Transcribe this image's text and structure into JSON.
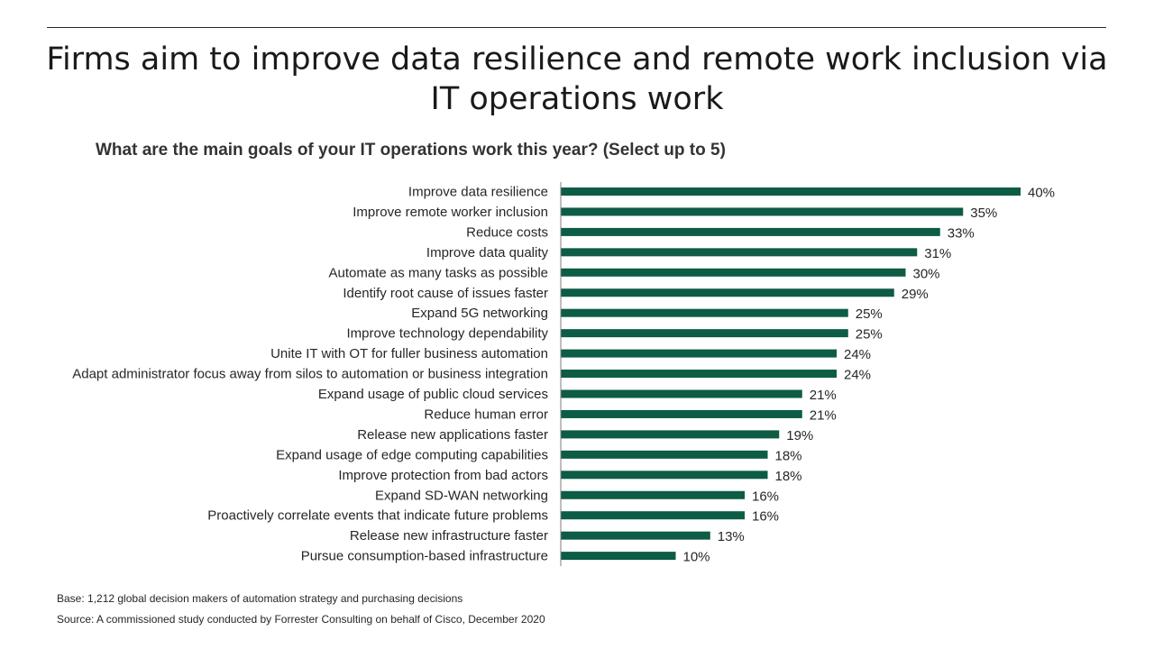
{
  "slide": {
    "title": "Firms aim to improve data resilience and remote work inclusion via IT operations work",
    "question": "What are the main goals of your IT operations work this year? (Select up to 5)",
    "base_note": "Base: 1,212 global decision makers of automation strategy and purchasing decisions",
    "source_note": "Source: A commissioned study conducted by Forrester Consulting on behalf of Cisco, December 2020"
  },
  "colors": {
    "bar": "#0d5c45",
    "axis": "#7f7f7f",
    "text": "#262626"
  },
  "chart_data": {
    "type": "bar",
    "orientation": "horizontal",
    "title": "What are the main goals of your IT operations work this year? (Select up to 5)",
    "xlabel": "",
    "ylabel": "",
    "xlim": [
      0,
      40
    ],
    "value_suffix": "%",
    "grid": false,
    "categories": [
      "Improve data resilience",
      "Improve remote worker inclusion",
      "Reduce costs",
      "Improve data quality",
      "Automate as many tasks as possible",
      "Identify root cause of issues faster",
      "Expand 5G networking",
      "Improve technology dependability",
      "Unite IT with OT for fuller business automation",
      "Adapt administrator focus away from silos to automation or business integration",
      "Expand usage of public cloud services",
      "Reduce human error",
      "Release new applications faster",
      "Expand usage of edge computing capabilities",
      "Improve protection from bad actors",
      "Expand SD-WAN networking",
      "Proactively correlate events that indicate future problems",
      "Release new infrastructure faster",
      "Pursue consumption-based infrastructure"
    ],
    "values": [
      40,
      35,
      33,
      31,
      30,
      29,
      25,
      25,
      24,
      24,
      21,
      21,
      19,
      18,
      18,
      16,
      16,
      13,
      10
    ],
    "labels": [
      "40%",
      "35%",
      "33%",
      "31%",
      "30%",
      "29%",
      "25%",
      "25%",
      "24%",
      "24%",
      "21%",
      "21%",
      "19%",
      "18%",
      "18%",
      "16%",
      "16%",
      "13%",
      "10%"
    ]
  }
}
